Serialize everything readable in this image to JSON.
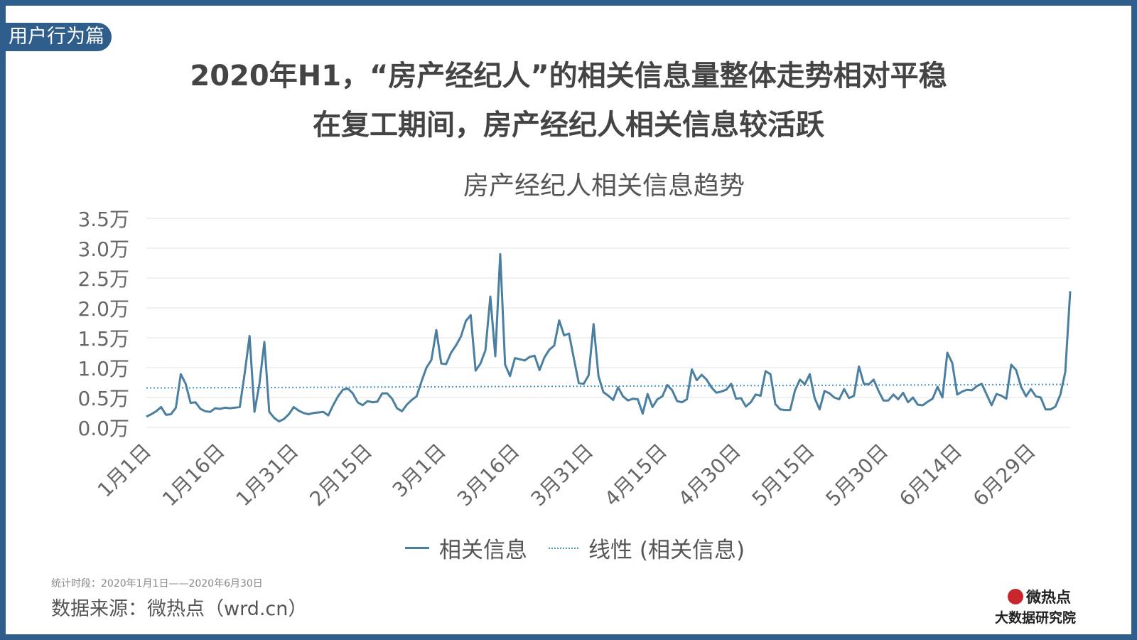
{
  "header": {
    "tag": "用户行为篇",
    "title_line1": "2020年H1，“房产经纪人”的相关信息量整体走势相对平稳",
    "title_line2": "在复工期间，房产经纪人相关信息较活跃"
  },
  "footer": {
    "period": "统计时段：2020年1月1日——2020年6月30日",
    "source": "数据来源：微热点（wrd.cn）"
  },
  "logo": {
    "line1": "微热点",
    "line2": "大数据研究院"
  },
  "colors": {
    "frame": "#2f5d8c",
    "series": "#4a7fa0",
    "trend": "#4a97c8",
    "grid": "#e0e0e0"
  },
  "chart_data": {
    "type": "line",
    "title": "房产经纪人相关信息趋势",
    "ylim": [
      0,
      3.5
    ],
    "ytick_labels": [
      "0.0万",
      "0.5万",
      "1.0万",
      "1.5万",
      "2.0万",
      "2.5万",
      "3.0万",
      "3.5万"
    ],
    "yticks": [
      0,
      0.5,
      1.0,
      1.5,
      2.0,
      2.5,
      3.0,
      3.5
    ],
    "x_tick_labels": [
      "1月1日",
      "1月16日",
      "1月31日",
      "2月15日",
      "3月1日",
      "3月16日",
      "3月31日",
      "4月15日",
      "4月30日",
      "5月15日",
      "5月30日",
      "6月14日",
      "6月29日"
    ],
    "x_tick_index": [
      0,
      15,
      30,
      45,
      60,
      75,
      90,
      105,
      120,
      135,
      150,
      165,
      180
    ],
    "grid": true,
    "legend_position": "bottom",
    "series": [
      {
        "name": "相关信息",
        "style": "solid",
        "values": [
          0.18,
          0.22,
          0.27,
          0.34,
          0.21,
          0.22,
          0.33,
          0.89,
          0.73,
          0.41,
          0.42,
          0.31,
          0.27,
          0.26,
          0.32,
          0.31,
          0.33,
          0.32,
          0.33,
          0.34,
          0.9,
          1.53,
          0.26,
          0.72,
          1.43,
          0.26,
          0.16,
          0.1,
          0.14,
          0.22,
          0.34,
          0.28,
          0.24,
          0.22,
          0.24,
          0.25,
          0.26,
          0.2,
          0.37,
          0.52,
          0.63,
          0.65,
          0.57,
          0.42,
          0.37,
          0.44,
          0.42,
          0.43,
          0.57,
          0.57,
          0.48,
          0.32,
          0.27,
          0.38,
          0.46,
          0.52,
          0.77,
          1.0,
          1.13,
          1.63,
          1.07,
          1.06,
          1.25,
          1.37,
          1.52,
          1.78,
          1.88,
          0.95,
          1.07,
          1.29,
          2.19,
          1.19,
          2.9,
          1.05,
          0.86,
          1.16,
          1.14,
          1.12,
          1.18,
          1.2,
          0.96,
          1.17,
          1.3,
          1.37,
          1.79,
          1.54,
          1.57,
          1.15,
          0.74,
          0.73,
          0.87,
          1.73,
          0.86,
          0.59,
          0.53,
          0.46,
          0.67,
          0.52,
          0.45,
          0.48,
          0.47,
          0.23,
          0.56,
          0.34,
          0.47,
          0.52,
          0.71,
          0.62,
          0.44,
          0.42,
          0.47,
          0.97,
          0.79,
          0.88,
          0.8,
          0.67,
          0.58,
          0.6,
          0.63,
          0.73,
          0.48,
          0.49,
          0.35,
          0.42,
          0.55,
          0.53,
          0.94,
          0.89,
          0.39,
          0.3,
          0.29,
          0.29,
          0.62,
          0.8,
          0.72,
          0.89,
          0.49,
          0.3,
          0.61,
          0.57,
          0.5,
          0.47,
          0.64,
          0.49,
          0.53,
          1.02,
          0.73,
          0.72,
          0.8,
          0.61,
          0.45,
          0.45,
          0.55,
          0.47,
          0.58,
          0.42,
          0.5,
          0.38,
          0.37,
          0.43,
          0.48,
          0.68,
          0.5,
          1.25,
          1.08,
          0.55,
          0.6,
          0.63,
          0.62,
          0.69,
          0.73,
          0.55,
          0.37,
          0.56,
          0.53,
          0.48,
          1.05,
          0.96,
          0.68,
          0.52,
          0.64,
          0.52,
          0.5,
          0.3,
          0.3,
          0.35,
          0.55,
          0.93,
          2.28
        ]
      },
      {
        "name": "线性 (相关信息)",
        "style": "dotted",
        "start": 0.66,
        "end": 0.72
      }
    ]
  }
}
